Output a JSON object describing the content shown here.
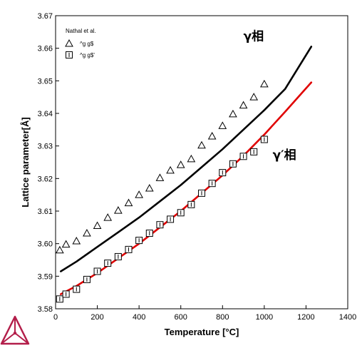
{
  "chart_data": {
    "type": "scatter",
    "xlabel": "Temperature [°C]",
    "ylabel": "Lattice parameter[Å]",
    "xlim": [
      0,
      1400
    ],
    "ylim": [
      3.58,
      3.67
    ],
    "xticks": [
      "0",
      "200",
      "400",
      "600",
      "800",
      "1000",
      "1200",
      "1400"
    ],
    "yticks": [
      "3.58",
      "3.59",
      "3.60",
      "3.61",
      "3.62",
      "3.63",
      "3.64",
      "3.65",
      "3.66",
      "3.67"
    ],
    "grid": false,
    "legend": {
      "title": "Nathal et al.",
      "position": "top-left",
      "entries": [
        {
          "marker": "triangle",
          "label": "^g g$"
        },
        {
          "marker": "square",
          "label": "^g g$'"
        }
      ]
    },
    "annotations": [
      {
        "text": "γ相",
        "x": 900,
        "y": 3.6625
      },
      {
        "text": "γ′相",
        "x": 1040,
        "y": 3.626
      }
    ],
    "series": [
      {
        "kind": "line",
        "color": "#000000",
        "x": [
          25,
          100,
          200,
          300,
          400,
          500,
          600,
          700,
          800,
          900,
          1000,
          1100,
          1225
        ],
        "y": [
          3.5915,
          3.5945,
          3.599,
          3.6035,
          3.608,
          3.613,
          3.618,
          3.6235,
          3.629,
          3.635,
          3.641,
          3.6475,
          3.6605
        ]
      },
      {
        "kind": "line",
        "color": "#e00000",
        "x": [
          25,
          100,
          200,
          300,
          400,
          500,
          600,
          700,
          800,
          900,
          1000,
          1100,
          1225
        ],
        "y": [
          3.5845,
          3.587,
          3.591,
          3.5955,
          3.6,
          3.605,
          3.61,
          3.6155,
          3.621,
          3.627,
          3.6335,
          3.6405,
          3.6495
        ]
      },
      {
        "kind": "markers",
        "marker": "triangle",
        "x": [
          20,
          50,
          100,
          150,
          200,
          250,
          300,
          350,
          400,
          450,
          500,
          550,
          600,
          650,
          700,
          750,
          800,
          850,
          900,
          950,
          1000
        ],
        "y": [
          3.598,
          3.5998,
          3.6008,
          3.6032,
          3.6055,
          3.608,
          3.6102,
          3.6125,
          3.615,
          3.617,
          3.6202,
          3.6225,
          3.6242,
          3.626,
          3.6302,
          3.633,
          3.6362,
          3.6398,
          3.6425,
          3.645,
          3.649
        ]
      },
      {
        "kind": "markers",
        "marker": "square",
        "x": [
          20,
          50,
          100,
          150,
          200,
          250,
          300,
          350,
          400,
          450,
          500,
          550,
          600,
          650,
          700,
          750,
          800,
          850,
          900,
          950,
          1000
        ],
        "y": [
          3.583,
          3.5845,
          3.586,
          3.589,
          3.5915,
          3.594,
          3.596,
          3.5982,
          3.601,
          3.6032,
          3.6058,
          3.6075,
          3.6095,
          3.612,
          3.6155,
          3.6185,
          3.6218,
          3.6245,
          3.6268,
          3.6282,
          3.632
        ]
      }
    ]
  },
  "logo": {
    "icon": "thermo-calc-logo-icon",
    "color": "#b31e4a"
  }
}
